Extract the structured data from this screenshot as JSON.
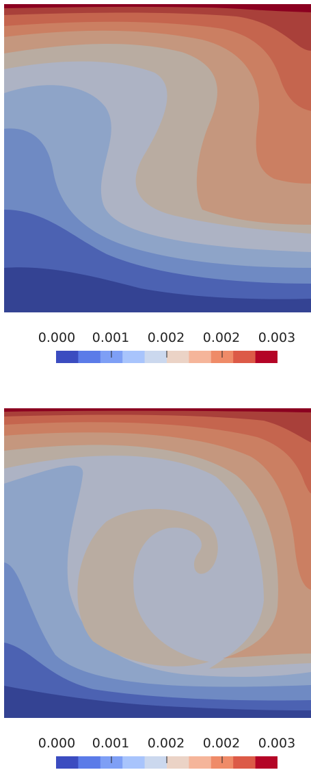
{
  "chart_data": [
    {
      "type": "heatmap",
      "title": "",
      "xlabel": "",
      "ylabel": "",
      "colormap": "coolwarm",
      "colorbar": {
        "tick_labels": [
          "0.000",
          "0.001",
          "0.002",
          "0.002",
          "0.003"
        ],
        "range": [
          0.0,
          0.0035
        ],
        "levels": 11,
        "colors": [
          "#3b4cc0",
          "#5b7be8",
          "#7e9ff5",
          "#a8c4fc",
          "#cbd8ee",
          "#ebd3c6",
          "#f5b59a",
          "#ef8b68",
          "#dc5a47",
          "#b40426",
          "#8b0020"
        ]
      },
      "band_colors": [
        "#344393",
        "#4c62b2",
        "#6f8ac3",
        "#8ea4c8",
        "#adb3c4",
        "#b9aca1",
        "#c5977e",
        "#cb7f62",
        "#c5654e",
        "#a9403a",
        "#8b0020"
      ]
    },
    {
      "type": "heatmap",
      "title": "",
      "xlabel": "",
      "ylabel": "",
      "colormap": "coolwarm",
      "colorbar": {
        "tick_labels": [
          "0.000",
          "0.001",
          "0.002",
          "0.002",
          "0.003"
        ],
        "range": [
          0.0,
          0.0035
        ],
        "levels": 11,
        "colors": [
          "#3b4cc0",
          "#5b7be8",
          "#7e9ff5",
          "#a8c4fc",
          "#cbd8ee",
          "#ebd3c6",
          "#f5b59a",
          "#ef8b68",
          "#dc5a47",
          "#b40426",
          "#8b0020"
        ]
      },
      "band_colors": [
        "#344393",
        "#4c62b2",
        "#6f8ac3",
        "#8ea4c8",
        "#adb3c4",
        "#b9aca1",
        "#c5977e",
        "#cb7f62",
        "#c5654e",
        "#a9403a",
        "#8b0020"
      ]
    }
  ]
}
